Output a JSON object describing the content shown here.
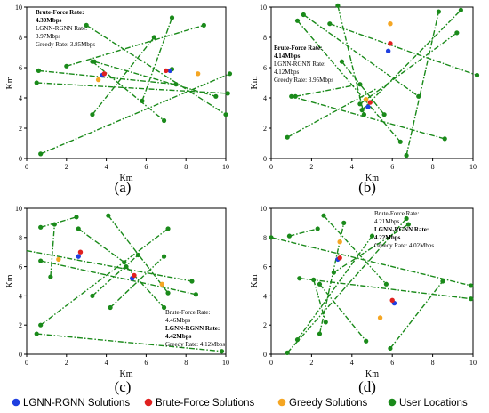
{
  "colors": {
    "user": "#1a8a1a",
    "lgnn": "#1f3fe0",
    "brute": "#e0201f",
    "greedy": "#f5a623",
    "link": "#1a8a1a"
  },
  "legend": [
    {
      "label": "LGNN-RGNN Solutions",
      "color": "#1f3fe0"
    },
    {
      "label": "Brute-Force Solutions",
      "color": "#e0201f"
    },
    {
      "label": "Greedy Solutions",
      "color": "#f5a623"
    },
    {
      "label": "User Locations",
      "color": "#1a8a1a"
    }
  ],
  "chart_data": [
    {
      "type": "scatter",
      "panel_label": "(a)",
      "xlabel": "Km",
      "ylabel": "Km",
      "xlim": [
        0,
        10
      ],
      "ylim": [
        0,
        10
      ],
      "xticks": [
        0,
        2,
        4,
        6,
        8,
        10
      ],
      "yticks": [
        0,
        2,
        4,
        6,
        8,
        10
      ],
      "annotation": [
        {
          "text": "Brute-Force Rate:",
          "bold": true
        },
        {
          "text": "4.30Mbps",
          "bold": true
        },
        {
          "text": "LGNN-RGNN Rate:",
          "bold": false
        },
        {
          "text": "3.97Mbps",
          "bold": false
        },
        {
          "text": "Greedy Rate: 3.85Mbps",
          "bold": false
        }
      ],
      "links": [
        [
          [
            0.7,
            0.3
          ],
          [
            10.2,
            5.6
          ]
        ],
        [
          [
            0.6,
            5.8
          ],
          [
            7.5,
            4.9
          ]
        ],
        [
          [
            0.5,
            5.0
          ],
          [
            10.1,
            4.3
          ]
        ],
        [
          [
            2.0,
            6.1
          ],
          [
            8.9,
            8.8
          ]
        ],
        [
          [
            3.0,
            8.8
          ],
          [
            10.0,
            2.9
          ]
        ],
        [
          [
            3.3,
            6.4
          ],
          [
            6.9,
            2.5
          ]
        ],
        [
          [
            3.3,
            2.9
          ],
          [
            6.4,
            8.0
          ]
        ],
        [
          [
            3.4,
            6.4
          ],
          [
            9.5,
            4.1
          ]
        ],
        [
          [
            5.8,
            3.8
          ],
          [
            7.3,
            9.3
          ]
        ]
      ],
      "users": [
        [
          0.7,
          0.3
        ],
        [
          0.6,
          5.8
        ],
        [
          0.5,
          5.0
        ],
        [
          2.0,
          6.1
        ],
        [
          3.0,
          8.8
        ],
        [
          3.3,
          6.4
        ],
        [
          3.3,
          2.9
        ],
        [
          3.4,
          6.4
        ],
        [
          5.8,
          3.8
        ],
        [
          6.4,
          8.0
        ],
        [
          6.9,
          2.5
        ],
        [
          7.3,
          9.3
        ],
        [
          7.5,
          4.9
        ],
        [
          8.9,
          8.8
        ],
        [
          9.5,
          4.1
        ],
        [
          10.0,
          2.9
        ],
        [
          10.1,
          4.3
        ],
        [
          10.2,
          5.6
        ],
        [
          7.3,
          5.9
        ]
      ],
      "lgnn": [
        [
          3.8,
          5.5
        ],
        [
          7.2,
          5.8
        ]
      ],
      "brute": [
        [
          3.9,
          5.6
        ],
        [
          7.0,
          5.8
        ]
      ],
      "greedy": [
        [
          3.6,
          5.2
        ],
        [
          8.6,
          5.6
        ]
      ]
    },
    {
      "type": "scatter",
      "panel_label": "(b)",
      "xlabel": "Km",
      "ylabel": "Km",
      "xlim": [
        0,
        10
      ],
      "ylim": [
        0,
        10
      ],
      "xticks": [
        0,
        2,
        4,
        6,
        8,
        10
      ],
      "yticks": [
        0,
        2,
        4,
        6,
        8,
        10
      ],
      "annotation": [
        {
          "text": "Brute-Force Rate:",
          "bold": true
        },
        {
          "text": "4.14Mbps",
          "bold": true
        },
        {
          "text": "LGNN-RGNN Rate:",
          "bold": false
        },
        {
          "text": "4.12Mbps",
          "bold": false
        },
        {
          "text": "Greedy Rate: 3.95Mbps",
          "bold": false
        }
      ],
      "links": [
        [
          [
            0.8,
            1.4
          ],
          [
            5.2,
            4.6
          ]
        ],
        [
          [
            1.0,
            4.1
          ],
          [
            8.6,
            1.3
          ]
        ],
        [
          [
            1.3,
            9.1
          ],
          [
            6.4,
            1.1
          ]
        ],
        [
          [
            1.6,
            9.5
          ],
          [
            7.3,
            4.1
          ]
        ],
        [
          [
            2.9,
            8.9
          ],
          [
            10.2,
            5.5
          ]
        ],
        [
          [
            3.3,
            10.1
          ],
          [
            4.6,
            2.9
          ]
        ],
        [
          [
            3.5,
            6.4
          ],
          [
            5.6,
            2.9
          ]
        ],
        [
          [
            4.5,
            3.2
          ],
          [
            9.4,
            9.8
          ]
        ],
        [
          [
            6.7,
            0.2
          ],
          [
            8.3,
            9.7
          ]
        ],
        [
          [
            1.2,
            4.1
          ],
          [
            4.4,
            4.9
          ]
        ],
        [
          [
            4.4,
            3.6
          ],
          [
            9.2,
            8.3
          ]
        ]
      ],
      "users": [
        [
          0.8,
          1.4
        ],
        [
          1.0,
          4.1
        ],
        [
          1.2,
          4.1
        ],
        [
          1.3,
          9.1
        ],
        [
          1.6,
          9.5
        ],
        [
          2.9,
          8.9
        ],
        [
          3.3,
          10.1
        ],
        [
          3.5,
          6.4
        ],
        [
          4.4,
          4.9
        ],
        [
          4.4,
          3.6
        ],
        [
          4.6,
          2.9
        ],
        [
          4.5,
          3.2
        ],
        [
          5.6,
          2.9
        ],
        [
          6.4,
          1.1
        ],
        [
          6.7,
          0.2
        ],
        [
          7.3,
          4.1
        ],
        [
          8.3,
          9.7
        ],
        [
          8.6,
          1.3
        ],
        [
          9.2,
          8.3
        ],
        [
          9.4,
          9.8
        ],
        [
          10.2,
          5.5
        ]
      ],
      "lgnn": [
        [
          4.8,
          3.4
        ],
        [
          5.8,
          7.1
        ]
      ],
      "brute": [
        [
          4.9,
          3.7
        ],
        [
          5.9,
          7.6
        ]
      ],
      "greedy": [
        [
          4.7,
          3.9
        ],
        [
          5.9,
          8.9
        ]
      ]
    },
    {
      "type": "scatter",
      "panel_label": "(c)",
      "xlabel": "Km",
      "ylabel": "Km",
      "xlim": [
        0,
        10
      ],
      "ylim": [
        0,
        10
      ],
      "xticks": [
        0,
        2,
        4,
        6,
        8,
        10
      ],
      "yticks": [
        0,
        2,
        4,
        6,
        8,
        10
      ],
      "annotation": [
        {
          "text": "Brute-Force Rate:",
          "bold": false
        },
        {
          "text": "4.46Mbps",
          "bold": false
        },
        {
          "text": "LGNN-RGNN Rate:",
          "bold": true
        },
        {
          "text": "4.42Mbps",
          "bold": true
        },
        {
          "text": "Greedy Rate: 4.12Mbps",
          "bold": false
        }
      ],
      "links": [
        [
          [
            0.5,
            1.4
          ],
          [
            9.8,
            0.2
          ]
        ],
        [
          [
            0.7,
            2.0
          ],
          [
            7.1,
            8.6
          ]
        ],
        [
          [
            0.7,
            6.4
          ],
          [
            8.5,
            4.1
          ]
        ],
        [
          [
            0.7,
            8.7
          ],
          [
            2.5,
            9.4
          ]
        ],
        [
          [
            0.0,
            7.1
          ],
          [
            8.3,
            5.0
          ]
        ],
        [
          [
            1.2,
            5.3
          ],
          [
            1.4,
            8.9
          ]
        ],
        [
          [
            2.6,
            8.6
          ],
          [
            4.9,
            6.3
          ]
        ],
        [
          [
            3.3,
            4.0
          ],
          [
            5.6,
            6.8
          ]
        ],
        [
          [
            4.1,
            9.5
          ],
          [
            7.1,
            4.2
          ]
        ],
        [
          [
            4.2,
            3.2
          ],
          [
            6.9,
            6.7
          ]
        ],
        [
          [
            5.0,
            6.0
          ],
          [
            6.9,
            3.2
          ]
        ]
      ],
      "users": [
        [
          0.5,
          1.4
        ],
        [
          0.7,
          2.0
        ],
        [
          0.7,
          6.4
        ],
        [
          0.7,
          8.7
        ],
        [
          1.2,
          5.3
        ],
        [
          1.4,
          8.9
        ],
        [
          2.5,
          9.4
        ],
        [
          2.6,
          8.6
        ],
        [
          3.3,
          4.0
        ],
        [
          4.1,
          9.5
        ],
        [
          4.2,
          3.2
        ],
        [
          4.9,
          6.3
        ],
        [
          5.0,
          6.0
        ],
        [
          5.6,
          6.8
        ],
        [
          6.9,
          3.2
        ],
        [
          6.9,
          6.7
        ],
        [
          7.1,
          4.2
        ],
        [
          7.1,
          8.6
        ],
        [
          8.3,
          5.0
        ],
        [
          8.5,
          4.1
        ],
        [
          9.8,
          0.2
        ]
      ],
      "lgnn": [
        [
          2.6,
          6.7
        ],
        [
          5.3,
          5.2
        ]
      ],
      "brute": [
        [
          2.7,
          7.0
        ],
        [
          5.4,
          5.4
        ]
      ],
      "greedy": [
        [
          1.6,
          6.5
        ],
        [
          6.8,
          4.8
        ]
      ]
    },
    {
      "type": "scatter",
      "panel_label": "(d)",
      "xlabel": "Km",
      "ylabel": "Km",
      "xlim": [
        0,
        10
      ],
      "ylim": [
        0,
        10
      ],
      "xticks": [
        0,
        2,
        4,
        6,
        8,
        10
      ],
      "yticks": [
        0,
        2,
        4,
        6,
        8,
        10
      ],
      "annotation": [
        {
          "text": "Brute-Force Rate:",
          "bold": false
        },
        {
          "text": "4.21Mbps",
          "bold": false
        },
        {
          "text": "LGNN-RGNN Rate:",
          "bold": true
        },
        {
          "text": "4.22Mbps",
          "bold": true
        },
        {
          "text": "Greedy Rate: 4.02Mbps",
          "bold": false
        }
      ],
      "links": [
        [
          [
            0.0,
            8.0
          ],
          [
            9.9,
            4.7
          ]
        ],
        [
          [
            0.8,
            0.1
          ],
          [
            6.7,
            9.3
          ]
        ],
        [
          [
            0.9,
            8.1
          ],
          [
            2.3,
            8.6
          ]
        ],
        [
          [
            1.3,
            1.0
          ],
          [
            5.0,
            8.1
          ]
        ],
        [
          [
            1.4,
            5.2
          ],
          [
            9.9,
            3.8
          ]
        ],
        [
          [
            2.1,
            5.1
          ],
          [
            2.7,
            2.2
          ]
        ],
        [
          [
            2.4,
            1.4
          ],
          [
            3.6,
            9.0
          ]
        ],
        [
          [
            2.6,
            9.5
          ],
          [
            5.7,
            4.8
          ]
        ],
        [
          [
            2.4,
            4.8
          ],
          [
            4.7,
            0.9
          ]
        ],
        [
          [
            5.9,
            0.4
          ],
          [
            8.5,
            5.0
          ]
        ],
        [
          [
            3.1,
            5.6
          ],
          [
            6.8,
            8.9
          ]
        ]
      ],
      "users": [
        [
          0.0,
          8.0
        ],
        [
          0.8,
          0.1
        ],
        [
          0.9,
          8.1
        ],
        [
          1.3,
          1.0
        ],
        [
          1.4,
          5.2
        ],
        [
          2.1,
          5.1
        ],
        [
          2.3,
          8.6
        ],
        [
          2.4,
          1.4
        ],
        [
          2.4,
          4.8
        ],
        [
          2.6,
          9.5
        ],
        [
          2.7,
          2.2
        ],
        [
          3.1,
          5.6
        ],
        [
          3.6,
          9.0
        ],
        [
          4.7,
          0.9
        ],
        [
          5.0,
          8.1
        ],
        [
          5.7,
          4.8
        ],
        [
          5.9,
          0.4
        ],
        [
          6.7,
          9.3
        ],
        [
          6.8,
          8.9
        ],
        [
          8.5,
          5.0
        ],
        [
          9.9,
          4.7
        ],
        [
          9.9,
          3.8
        ]
      ],
      "lgnn": [
        [
          3.3,
          6.5
        ],
        [
          6.1,
          3.5
        ]
      ],
      "brute": [
        [
          3.4,
          6.6
        ],
        [
          6.0,
          3.7
        ]
      ],
      "greedy": [
        [
          3.4,
          7.7
        ],
        [
          5.4,
          2.5
        ]
      ]
    }
  ]
}
